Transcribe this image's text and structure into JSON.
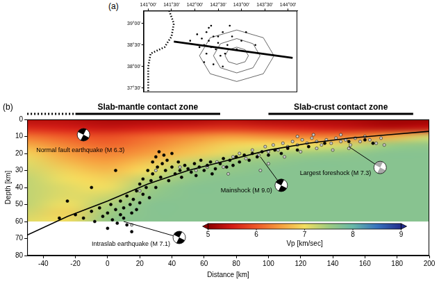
{
  "chart_data": [
    {
      "type": "scatter",
      "panel_label": "(b)",
      "xlabel": "Distance [km]",
      "ylabel": "Depth [km]",
      "xlim": [
        -50,
        200
      ],
      "ylim": [
        80,
        0
      ],
      "xticks": [
        -40,
        -20,
        0,
        20,
        40,
        60,
        80,
        100,
        120,
        140,
        160,
        180,
        200
      ],
      "yticks": [
        0,
        10,
        20,
        30,
        40,
        50,
        60,
        70,
        80
      ],
      "grid": false,
      "series": [
        {
          "type": "line",
          "color": "#000000",
          "line_style": "solid",
          "x": [
            -50,
            -25,
            0,
            25,
            50,
            75,
            100,
            125,
            150,
            175,
            200
          ],
          "values": [
            68,
            57,
            48,
            38,
            30,
            24,
            18,
            14,
            11,
            9,
            7
          ]
        },
        {
          "color": "#000000",
          "marker": "circle",
          "x": [
            -20,
            -15,
            -10,
            -8,
            -5,
            -3,
            0,
            2,
            3,
            5,
            6,
            8,
            8,
            10,
            10,
            12,
            12,
            14,
            15,
            16,
            18,
            18,
            20,
            20,
            22,
            22,
            24,
            25,
            26,
            27,
            28,
            28,
            30,
            30,
            31,
            32,
            33,
            34,
            35,
            36,
            37,
            38,
            40,
            40,
            42,
            44,
            45,
            46,
            48,
            50,
            52,
            54,
            55,
            57,
            58,
            60,
            62,
            64,
            65,
            67,
            70,
            72,
            74,
            76,
            78,
            80,
            82,
            85,
            88,
            90,
            93,
            96,
            100,
            104,
            108,
            112,
            118,
            125,
            135,
            150,
            160,
            165,
            -25,
            -30,
            0,
            15,
            5,
            -10
          ],
          "values": [
            56,
            58,
            54,
            60,
            52,
            57,
            55,
            50,
            59,
            53,
            61,
            48,
            56,
            52,
            58,
            45,
            62,
            50,
            55,
            47,
            53,
            42,
            49,
            38,
            44,
            35,
            40,
            30,
            46,
            36,
            25,
            32,
            22,
            40,
            28,
            19,
            34,
            26,
            21,
            30,
            24,
            36,
            28,
            20,
            32,
            25,
            30,
            34,
            27,
            29,
            31,
            26,
            33,
            28,
            24,
            30,
            27,
            25,
            32,
            29,
            26,
            23,
            28,
            24,
            27,
            22,
            25,
            21,
            24,
            20,
            22,
            19,
            21,
            18,
            20,
            17,
            18,
            16,
            14,
            13,
            12,
            14,
            48,
            58,
            64,
            66,
            30,
            40
          ]
        },
        {
          "color": "#c8c8c8",
          "marker": "circle",
          "x": [
            15,
            20,
            30,
            45,
            55,
            62,
            68,
            72,
            78,
            82,
            86,
            90,
            94,
            98,
            100,
            103,
            106,
            109,
            112,
            115,
            118,
            121,
            124,
            127,
            130,
            133,
            136,
            139,
            142,
            145,
            148,
            151,
            154,
            157,
            160,
            163,
            167,
            170,
            110,
            120,
            130,
            140,
            150,
            100,
            95,
            75,
            118,
            128,
            145,
            172
          ],
          "values": [
            62,
            42,
            30,
            28,
            30,
            28,
            25,
            28,
            22,
            20,
            23,
            18,
            21,
            16,
            19,
            15,
            18,
            14,
            16,
            13,
            15,
            12,
            14,
            11,
            13,
            15,
            12,
            14,
            11,
            13,
            12,
            15,
            11,
            13,
            10,
            12,
            14,
            11,
            22,
            19,
            17,
            18,
            17,
            26,
            30,
            32,
            10,
            9,
            9,
            15
          ]
        }
      ],
      "heatmap": {
        "x": [
          -50,
          -25,
          0,
          25,
          50,
          75,
          100,
          125,
          150,
          175,
          200
        ],
        "y": [
          0,
          5,
          10,
          15,
          20,
          25,
          30,
          35,
          40,
          45,
          50,
          55,
          60
        ],
        "values": [
          [
            5.3,
            5.3,
            5.2,
            5.2,
            5.2,
            5.3,
            5.2,
            5.2,
            5.2,
            5.1,
            5.1
          ],
          [
            5.6,
            5.5,
            5.4,
            5.5,
            5.6,
            5.7,
            5.6,
            5.5,
            5.4,
            5.3,
            5.4
          ],
          [
            6.2,
            6.0,
            5.9,
            6.1,
            6.3,
            6.5,
            6.4,
            6.3,
            6.3,
            6.6,
            7.2
          ],
          [
            6.6,
            6.3,
            6.1,
            6.3,
            6.6,
            6.9,
            7.0,
            7.0,
            7.2,
            7.5,
            7.6
          ],
          [
            6.9,
            6.5,
            6.3,
            6.5,
            6.8,
            7.1,
            7.4,
            7.5,
            7.6,
            7.7,
            7.7
          ],
          [
            7.1,
            6.7,
            6.5,
            6.8,
            7.2,
            7.5,
            7.6,
            7.7,
            7.7,
            7.7,
            7.7
          ],
          [
            7.2,
            6.9,
            6.7,
            7.0,
            7.5,
            7.6,
            7.7,
            7.7,
            7.7,
            7.7,
            7.7
          ],
          [
            7.3,
            7.0,
            6.9,
            7.3,
            7.6,
            7.7,
            7.7,
            7.7,
            7.7,
            7.7,
            7.7
          ],
          [
            7.3,
            7.1,
            7.0,
            7.5,
            7.7,
            7.7,
            7.7,
            7.7,
            7.7,
            7.7,
            7.7
          ],
          [
            7.3,
            7.1,
            7.2,
            7.6,
            7.7,
            7.7,
            7.7,
            7.7,
            7.7,
            7.7,
            7.7
          ],
          [
            7.3,
            7.0,
            7.4,
            7.7,
            7.7,
            7.7,
            7.7,
            7.7,
            7.7,
            7.7,
            7.7
          ],
          [
            7.2,
            6.9,
            7.5,
            7.7,
            7.7,
            7.7,
            7.7,
            7.7,
            7.7,
            7.7,
            7.7
          ],
          [
            7.1,
            7.0,
            7.6,
            7.7,
            7.7,
            7.7,
            7.7,
            7.7,
            7.7,
            7.7,
            7.7
          ]
        ],
        "colorbar": {
          "label": "Vp [km/sec]",
          "range": [
            5,
            9
          ],
          "ticks": [
            5,
            6,
            7,
            8,
            9
          ]
        }
      },
      "zones": [
        {
          "label": "Slab-mantle contact zone",
          "start": -20,
          "end": 70,
          "dotted_start": -50
        },
        {
          "label": "Slab-crust contact zone",
          "start": 100,
          "end": 190
        }
      ],
      "annotations": [
        {
          "text": "Normal fault earthquake (M 6.3)",
          "x": -15,
          "y": 9,
          "color": "#000000"
        },
        {
          "text": "Mainshock (M 9.0)",
          "x": 95,
          "y": 22,
          "color": "#000000"
        },
        {
          "text": "Largest foreshock (M 7.3)",
          "x": 150,
          "y": 16,
          "color": "#a8a8a8"
        },
        {
          "text": "Intraslab earthquake (M 7.1)",
          "x": 10,
          "y": 60,
          "color": "#000000"
        }
      ]
    },
    {
      "type": "map",
      "panel_label": "(a)",
      "xlim": [
        140.9,
        144.2
      ],
      "ylim": [
        37.4,
        39.3
      ],
      "xticks": [
        {
          "value": 141,
          "label": "141°00'"
        },
        {
          "value": 141.5,
          "label": "141°30'"
        },
        {
          "value": 142,
          "label": "142°00'"
        },
        {
          "value": 142.5,
          "label": "142°30'"
        },
        {
          "value": 143,
          "label": "143°00'"
        },
        {
          "value": 143.5,
          "label": "143°30'"
        },
        {
          "value": 144,
          "label": "144°00'"
        }
      ],
      "yticks": [
        {
          "value": 37.5,
          "label": "37°30'"
        },
        {
          "value": 38,
          "label": "38°00'"
        },
        {
          "value": 38.5,
          "label": "38°30'"
        },
        {
          "value": 39,
          "label": "39°00'"
        }
      ],
      "grid": false,
      "series": [
        {
          "color": "#000000",
          "marker": "circle",
          "x": [
            142.2,
            142.3,
            142.35,
            142.4,
            142.25,
            142.5,
            142.45,
            142.6,
            142.15,
            142.3,
            142.55,
            142.7,
            142.8,
            142.9,
            143.0,
            142.2,
            142.4,
            142.6,
            142.1,
            142.05,
            142.35,
            141.9,
            142.75,
            143.1,
            143.3,
            142.65,
            142.5,
            142.25
          ],
          "values": [
            38.5,
            38.6,
            38.45,
            38.7,
            38.3,
            38.55,
            38.4,
            38.8,
            38.65,
            38.9,
            38.25,
            38.5,
            38.7,
            38.4,
            38.6,
            38.1,
            38.05,
            38.0,
            38.45,
            38.75,
            38.95,
            38.6,
            38.95,
            38.8,
            38.5,
            38.3,
            38.7,
            38.8
          ]
        },
        {
          "type": "line",
          "color": "#000000",
          "line_style": "solid",
          "x": [
            141.55,
            144.1
          ],
          "values": [
            38.58,
            38.2
          ]
        },
        {
          "type": "line",
          "color": "#000000",
          "line_style": "dotted",
          "x": [
            141.45,
            141.55,
            141.5,
            141.35,
            141.05,
            141.0,
            141.0
          ],
          "values": [
            39.3,
            39.0,
            38.7,
            38.45,
            38.3,
            38.0,
            37.4
          ]
        }
      ],
      "contours": [
        {
          "x": [
            143.15,
            143.08,
            142.9,
            142.72,
            142.65,
            142.72,
            142.9,
            143.08
          ],
          "values": [
            38.25,
            38.39,
            38.45,
            38.39,
            38.25,
            38.11,
            38.05,
            38.11
          ]
        },
        {
          "x": [
            143.4,
            143.25,
            142.9,
            142.55,
            142.4,
            142.55,
            142.9,
            143.25
          ],
          "values": [
            38.25,
            38.53,
            38.65,
            38.53,
            38.25,
            37.97,
            37.85,
            37.97
          ]
        },
        {
          "x": [
            143.7,
            143.47,
            142.9,
            142.33,
            142.1,
            142.33,
            142.9,
            143.47
          ],
          "values": [
            38.25,
            38.67,
            38.85,
            38.67,
            38.25,
            37.83,
            37.65,
            37.83
          ]
        }
      ]
    }
  ]
}
